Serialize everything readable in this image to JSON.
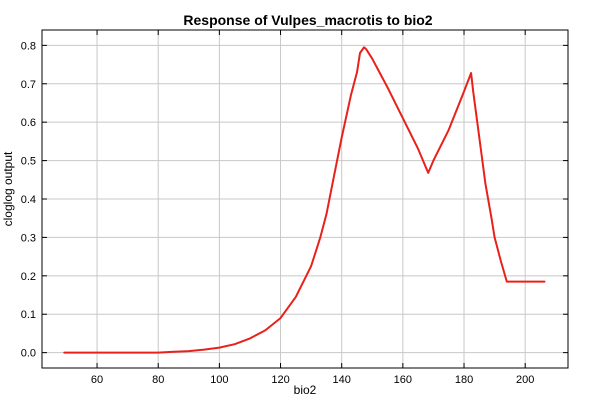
{
  "chart_data": {
    "type": "line",
    "title": "Response of Vulpes_macrotis to bio2",
    "xlabel": "bio2",
    "ylabel": "cloglog output",
    "xlim": [
      42,
      214
    ],
    "ylim": [
      -0.04,
      0.84
    ],
    "xticks": [
      60,
      80,
      100,
      120,
      140,
      160,
      180,
      200
    ],
    "xtick_labels": [
      "60",
      "80",
      "100",
      "120",
      "140",
      "160",
      "180",
      "200"
    ],
    "yticks": [
      0.0,
      0.1,
      0.2,
      0.3,
      0.4,
      0.5,
      0.6,
      0.7,
      0.8
    ],
    "ytick_labels": [
      "0.0",
      "0.1",
      "0.2",
      "0.3",
      "0.4",
      "0.5",
      "0.6",
      "0.7",
      "0.8"
    ],
    "grid": true,
    "legend": "none",
    "series": [
      {
        "color": "#e8211b",
        "x": [
          49.3,
          60,
          70,
          80,
          84.3,
          90,
          95,
          100,
          105,
          110,
          115,
          120,
          125,
          130,
          133,
          135,
          137,
          140,
          143,
          145,
          146,
          147.3,
          148,
          150,
          155,
          160,
          165,
          168.3,
          170,
          175,
          180,
          182.3,
          183,
          185,
          187,
          189,
          190,
          192,
          194,
          200,
          206.3
        ],
        "values": [
          0.0,
          0.0,
          0.0,
          0.0,
          0.002,
          0.004,
          0.008,
          0.013,
          0.022,
          0.037,
          0.058,
          0.09,
          0.145,
          0.225,
          0.3,
          0.36,
          0.44,
          0.56,
          0.67,
          0.73,
          0.78,
          0.795,
          0.79,
          0.765,
          0.69,
          0.61,
          0.53,
          0.468,
          0.5,
          0.58,
          0.68,
          0.728,
          0.68,
          0.56,
          0.44,
          0.35,
          0.3,
          0.24,
          0.185,
          0.185,
          0.185
        ]
      }
    ]
  }
}
